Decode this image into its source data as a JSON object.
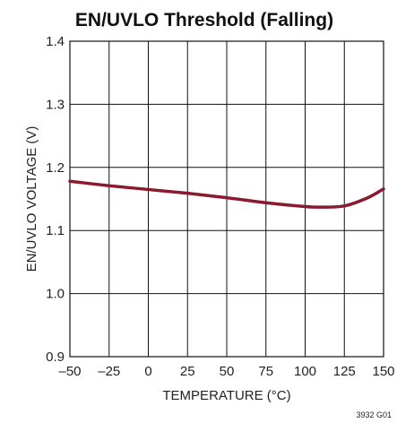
{
  "chart_data": {
    "type": "line",
    "title": "EN/UVLO Threshold (Falling)",
    "xlabel": "TEMPERATURE (°C)",
    "ylabel": "EN/UVLO VOLTAGE (V)",
    "xlim": [
      -50,
      150
    ],
    "ylim": [
      0.9,
      1.4
    ],
    "xticks": [
      -50,
      -25,
      0,
      25,
      50,
      75,
      100,
      125,
      150
    ],
    "xtick_labels": [
      "–50",
      "–25",
      "0",
      "25",
      "50",
      "75",
      "100",
      "125",
      "150"
    ],
    "yticks": [
      0.9,
      1.0,
      1.1,
      1.2,
      1.3,
      1.4
    ],
    "ytick_labels": [
      "0.9",
      "1.0",
      "1.1",
      "1.2",
      "1.3",
      "1.4"
    ],
    "grid": true,
    "series": [
      {
        "color": "#8b1a2e",
        "x": [
          -50,
          -25,
          0,
          25,
          50,
          75,
          100,
          110,
          125,
          140,
          150
        ],
        "y": [
          1.178,
          1.171,
          1.165,
          1.159,
          1.152,
          1.144,
          1.138,
          1.137,
          1.139,
          1.152,
          1.166
        ]
      }
    ],
    "figure_code": "3932 G01"
  }
}
